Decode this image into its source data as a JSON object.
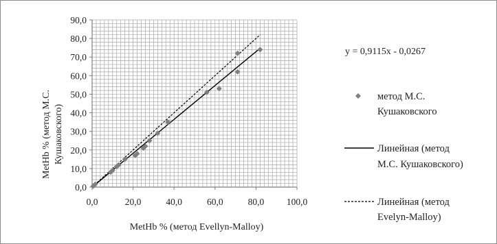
{
  "chart_data": {
    "type": "scatter",
    "title": "",
    "xlabel": "MetHb % (метод Evellyn-Malloy)",
    "ylabel": [
      "MetHb % (метод М.С.",
      "Кушаковского)"
    ],
    "xlim": [
      0,
      100
    ],
    "ylim": [
      0,
      90
    ],
    "x_ticks": [
      0,
      20,
      40,
      60,
      80,
      100
    ],
    "x_tick_labels": [
      "0,0",
      "20,0",
      "40,0",
      "60,0",
      "80,0",
      "100,0"
    ],
    "y_ticks": [
      0,
      10,
      20,
      30,
      40,
      50,
      60,
      70,
      80,
      90
    ],
    "y_tick_labels": [
      "0,0",
      "10,0",
      "20,0",
      "30,0",
      "40,0",
      "50,0",
      "60,0",
      "70,0",
      "80,0",
      "90,0"
    ],
    "x_minor_step": 2,
    "y_minor_step": 2,
    "grid": true,
    "legend_position": "right",
    "equation": "y = 0,9115x - 0,0267",
    "series": [
      {
        "name": [
          "метод М.С.",
          "Кушаковского"
        ],
        "kind": "scatter",
        "marker": "diamond",
        "color": "#7f7f7f",
        "points": [
          [
            0.5,
            0.5
          ],
          [
            1.5,
            1.5
          ],
          [
            9,
            8
          ],
          [
            10,
            9
          ],
          [
            12,
            11
          ],
          [
            13,
            12
          ],
          [
            16,
            15
          ],
          [
            21,
            17
          ],
          [
            22,
            18
          ],
          [
            25,
            21
          ],
          [
            26,
            22
          ],
          [
            28,
            25
          ],
          [
            32,
            29
          ],
          [
            37,
            35
          ],
          [
            56,
            51
          ],
          [
            62,
            53
          ],
          [
            71,
            62
          ],
          [
            71,
            72
          ],
          [
            82,
            74
          ]
        ]
      },
      {
        "name": [
          "Линейная (метод",
          "М.С. Кушаковского)"
        ],
        "kind": "line",
        "style": "solid",
        "color": "#000000",
        "x_range": [
          0,
          82
        ],
        "slope": 0.9115,
        "intercept": -0.0267
      },
      {
        "name": [
          "Линейная (метод",
          "Evelyn-Malloy)"
        ],
        "kind": "line",
        "style": "dashed",
        "color": "#000000",
        "x_range": [
          0,
          82
        ],
        "slope": 1.0,
        "intercept": 0
      }
    ]
  }
}
